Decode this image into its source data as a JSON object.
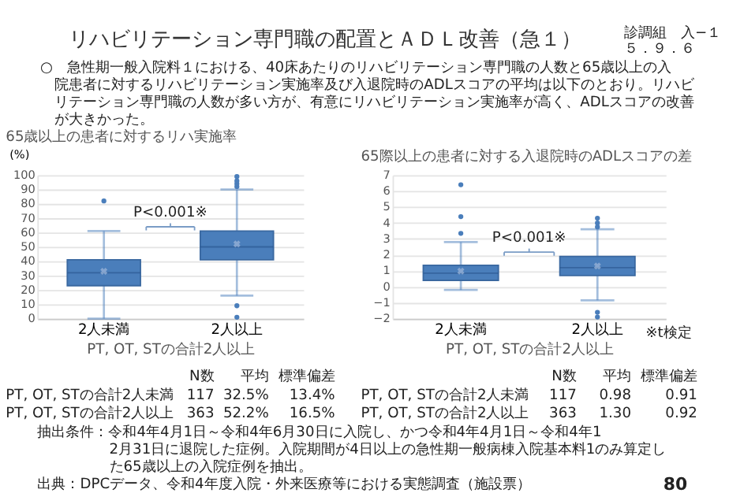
{
  "chart_data": [
    {
      "type": "box",
      "title": "65歳以上の患者に対するリハ実施率",
      "xlabel": "PT, OT, STの合計2人以上",
      "ylabel": "(%)",
      "categories": [
        "2人未満",
        "2人以上"
      ],
      "color": "#4a7ebb",
      "boxes": [
        {
          "low": 0,
          "q1": 23,
          "median": 32,
          "q3": 41,
          "high": 61,
          "mean": 33,
          "outliers": [
            82
          ]
        },
        {
          "low": 16,
          "q1": 41,
          "median": 50,
          "q3": 61,
          "high": 90,
          "mean": 52,
          "outliers": [
            92,
            94,
            96,
            99,
            9,
            1
          ]
        }
      ],
      "ylim": [
        0,
        100
      ],
      "yticks": [
        0,
        10,
        20,
        30,
        40,
        50,
        60,
        70,
        80,
        90,
        100
      ],
      "grid": "y",
      "annotations": [
        "リハビリテーション専門職の配置とＡＤＬ改善（急１）",
        "診調組　入−１",
        "５．９．６",
        "○　急性期一般入院料１における、40床あたりのリハビリテーション専門職の人数と65歳以上の入院患者に対するリハビリテーション実施率及び入退院時のADLスコアの平均は以下のとおり。リハビリテーション専門職の人数が多い方が、有意にリハビリテーション実施率が高く、ADLスコアの改善が大きかった。",
        "P<0.001※",
        "N数",
        "平均",
        "標準偏差",
        "PT, OT, STの合計2人未満",
        "117",
        "32.5%",
        "13.4%",
        "PT, OT, STの合計2人以上",
        "363",
        "52.2%",
        "16.5%",
        "抽出条件：令和4年4月1日～令和4年6月30日に入院し、かつ令和4年4月1日～令和4年12月31日に退院した症例。入院期間が4日以上の急性期一般病棟入院基本料1のみ算定した65歳以上の入院症例を抽出。",
        "出典：DPCデータ、令和4年度入院・外来医療等における実態調査（施設票）",
        "80"
      ]
    },
    {
      "type": "box",
      "title": "65際以上の患者に対する入退院時のADLスコアの差",
      "xlabel": "PT, OT, STの合計2人以上",
      "categories": [
        "2人未満",
        "2人以上"
      ],
      "color": "#4a7ebb",
      "boxes": [
        {
          "low": -0.2,
          "q1": 0.4,
          "median": 0.85,
          "q3": 1.35,
          "high": 2.8,
          "mean": 0.98,
          "outliers": [
            3.35,
            4.4,
            6.4
          ]
        },
        {
          "low": -0.85,
          "q1": 0.7,
          "median": 1.2,
          "q3": 1.9,
          "high": 3.6,
          "mean": 1.3,
          "outliers": [
            3.75,
            4.0,
            4.3,
            -1.6,
            -1.9
          ]
        }
      ],
      "ylim": [
        -2,
        7
      ],
      "yticks": [
        -2,
        -1,
        0,
        1,
        2,
        3,
        4,
        5,
        6,
        7
      ],
      "grid": "y",
      "annotations": [
        "P<0.001※",
        "N数",
        "平均",
        "標準偏差",
        "PT, OT, STの合計2人未満",
        "117",
        "0.98",
        "0.91",
        "PT, OT, STの合計2人以上",
        "363",
        "1.30",
        "0.92",
        "※t検定"
      ]
    }
  ]
}
